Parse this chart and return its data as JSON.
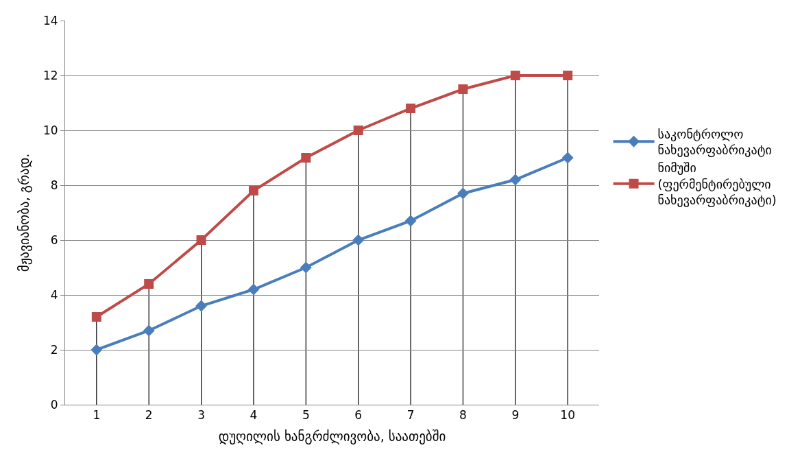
{
  "chart_data": {
    "type": "line",
    "xlabel": "დუღილის ხანგრძლივობა, საათებში",
    "ylabel": "მჟავიანობა, გრად.",
    "categories": [
      "1",
      "2",
      "3",
      "4",
      "5",
      "6",
      "7",
      "8",
      "9",
      "10"
    ],
    "series": [
      {
        "name": "საკონტროლო ნახევარფაბრიკატი",
        "color": "#4a7ebb",
        "marker": "diamond",
        "values": [
          2,
          2.7,
          3.6,
          4.2,
          5,
          6,
          6.7,
          7.7,
          8.2,
          9
        ]
      },
      {
        "name": "ნიმუში (ფერმენტირებული ნახევარფაბრიკატი)",
        "color": "#be4b48",
        "marker": "square",
        "values": [
          3.2,
          4.4,
          6,
          7.8,
          9,
          10,
          10.8,
          11.5,
          12,
          12
        ]
      }
    ],
    "ylim": [
      0,
      14
    ],
    "yticks": [
      0,
      2,
      4,
      6,
      8,
      10,
      12,
      14
    ],
    "grid": "y",
    "legend": "right",
    "line_style": "solid",
    "ref_lines": [
      {
        "axis": "x",
        "value": "1",
        "color": "#000000"
      },
      {
        "axis": "x",
        "value": "2",
        "color": "#000000"
      },
      {
        "axis": "x",
        "value": "3",
        "color": "#000000"
      },
      {
        "axis": "x",
        "value": "4",
        "color": "#000000"
      },
      {
        "axis": "x",
        "value": "5",
        "color": "#000000"
      },
      {
        "axis": "x",
        "value": "6",
        "color": "#000000"
      },
      {
        "axis": "x",
        "value": "7",
        "color": "#000000"
      },
      {
        "axis": "x",
        "value": "8",
        "color": "#000000"
      },
      {
        "axis": "x",
        "value": "9",
        "color": "#000000"
      },
      {
        "axis": "x",
        "value": "10",
        "color": "#000000"
      }
    ]
  }
}
